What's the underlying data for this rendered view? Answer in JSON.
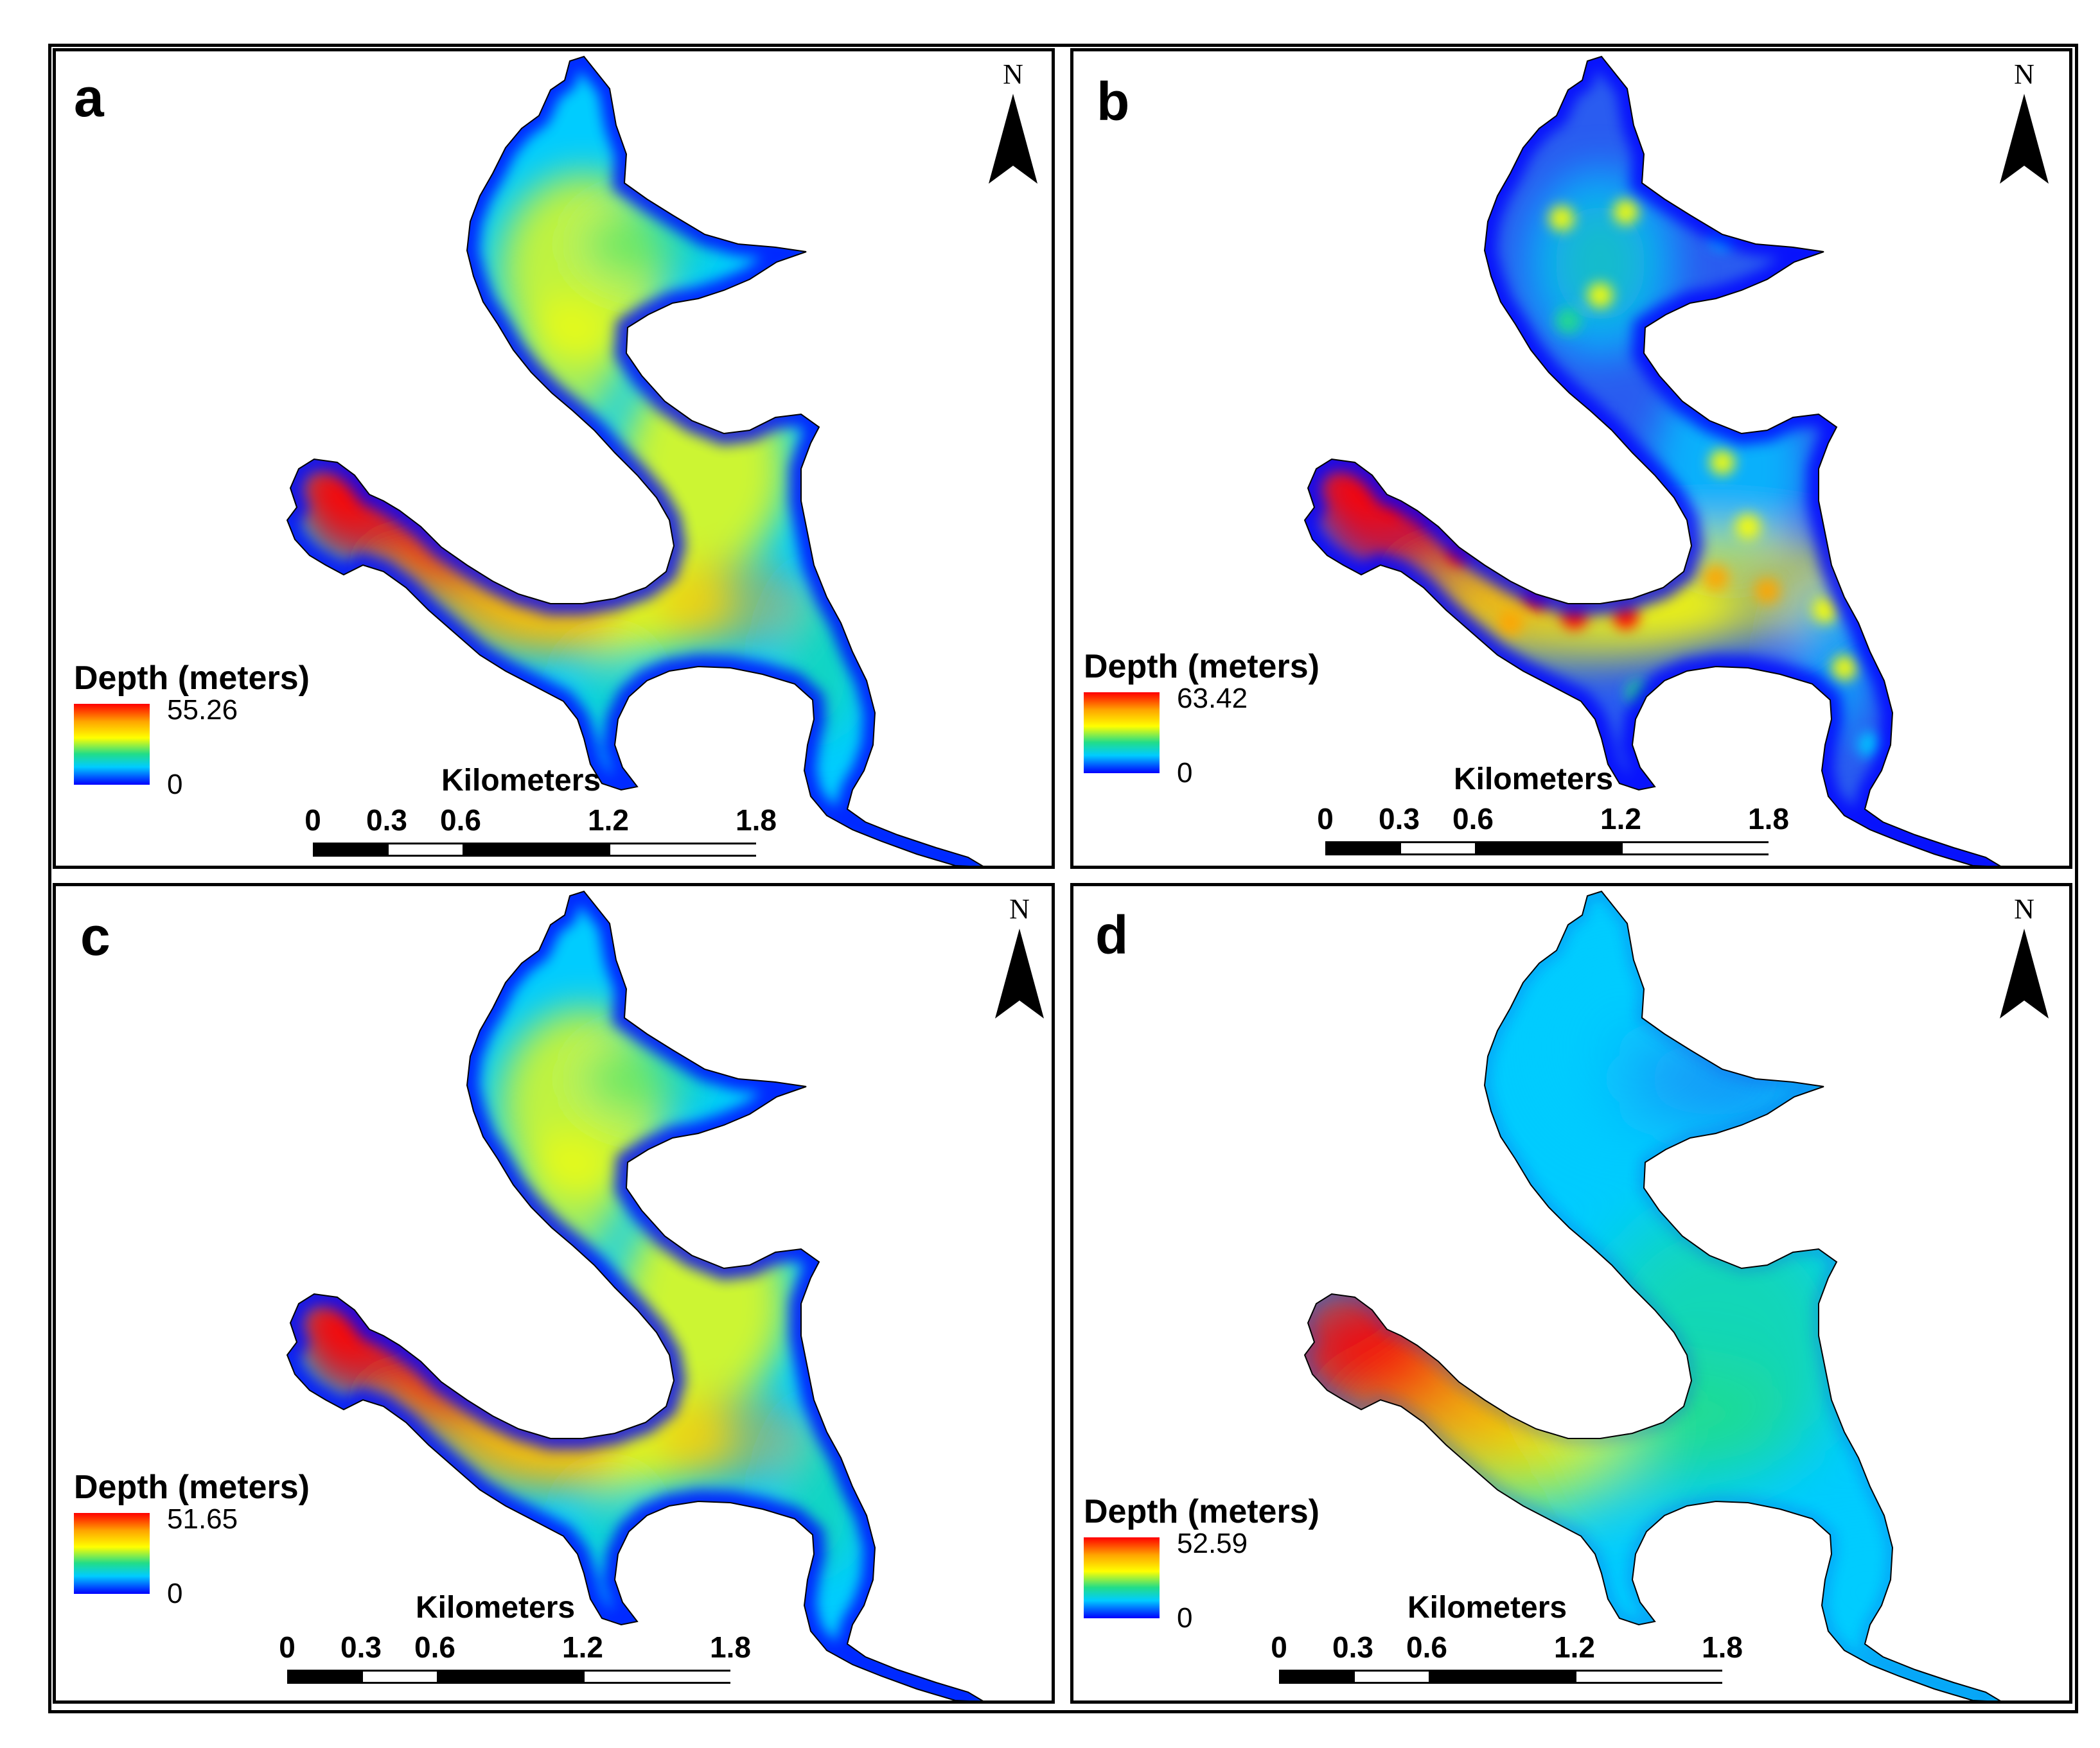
{
  "panels": [
    {
      "letter": "a",
      "north_label": "N",
      "legend": {
        "title": "Depth (meters)",
        "max": "55.26",
        "min": "0"
      },
      "scale": {
        "title": "Kilometers",
        "ticks": [
          "0",
          "0.3",
          "0.6",
          "1.2",
          "1.8"
        ],
        "tick_km": [
          0,
          0.3,
          0.6,
          1.2,
          1.8
        ]
      },
      "map_style": "idw",
      "max_depth_m": 55.26
    },
    {
      "letter": "b",
      "north_label": "N",
      "legend": {
        "title": "Depth (meters)",
        "max": "63.42",
        "min": "0"
      },
      "scale": {
        "title": "Kilometers",
        "ticks": [
          "0",
          "0.3",
          "0.6",
          "1.2",
          "1.8"
        ],
        "tick_km": [
          0,
          0.3,
          0.6,
          1.2,
          1.8
        ]
      },
      "map_style": "spotty",
      "max_depth_m": 63.42
    },
    {
      "letter": "c",
      "north_label": "N",
      "legend": {
        "title": "Depth (meters)",
        "max": "51.65",
        "min": "0"
      },
      "scale": {
        "title": "Kilometers",
        "ticks": [
          "0",
          "0.3",
          "0.6",
          "1.2",
          "1.8"
        ],
        "tick_km": [
          0,
          0.3,
          0.6,
          1.2,
          1.8
        ]
      },
      "map_style": "idw",
      "max_depth_m": 51.65
    },
    {
      "letter": "d",
      "north_label": "N",
      "legend": {
        "title": "Depth (meters)",
        "max": "52.59",
        "min": "0"
      },
      "scale": {
        "title": "Kilometers",
        "ticks": [
          "0",
          "0.3",
          "0.6",
          "1.2",
          "1.8"
        ],
        "tick_km": [
          0,
          0.3,
          0.6,
          1.2,
          1.8
        ]
      },
      "map_style": "smooth",
      "max_depth_m": 52.59
    }
  ],
  "colors": {
    "deep": "#ff0000",
    "mid_deep": "#ffa500",
    "mid": "#ffff00",
    "mid_shallow": "#22dd88",
    "shallow": "#00ccff",
    "shore": "#0000ff",
    "frame": "#000000"
  }
}
